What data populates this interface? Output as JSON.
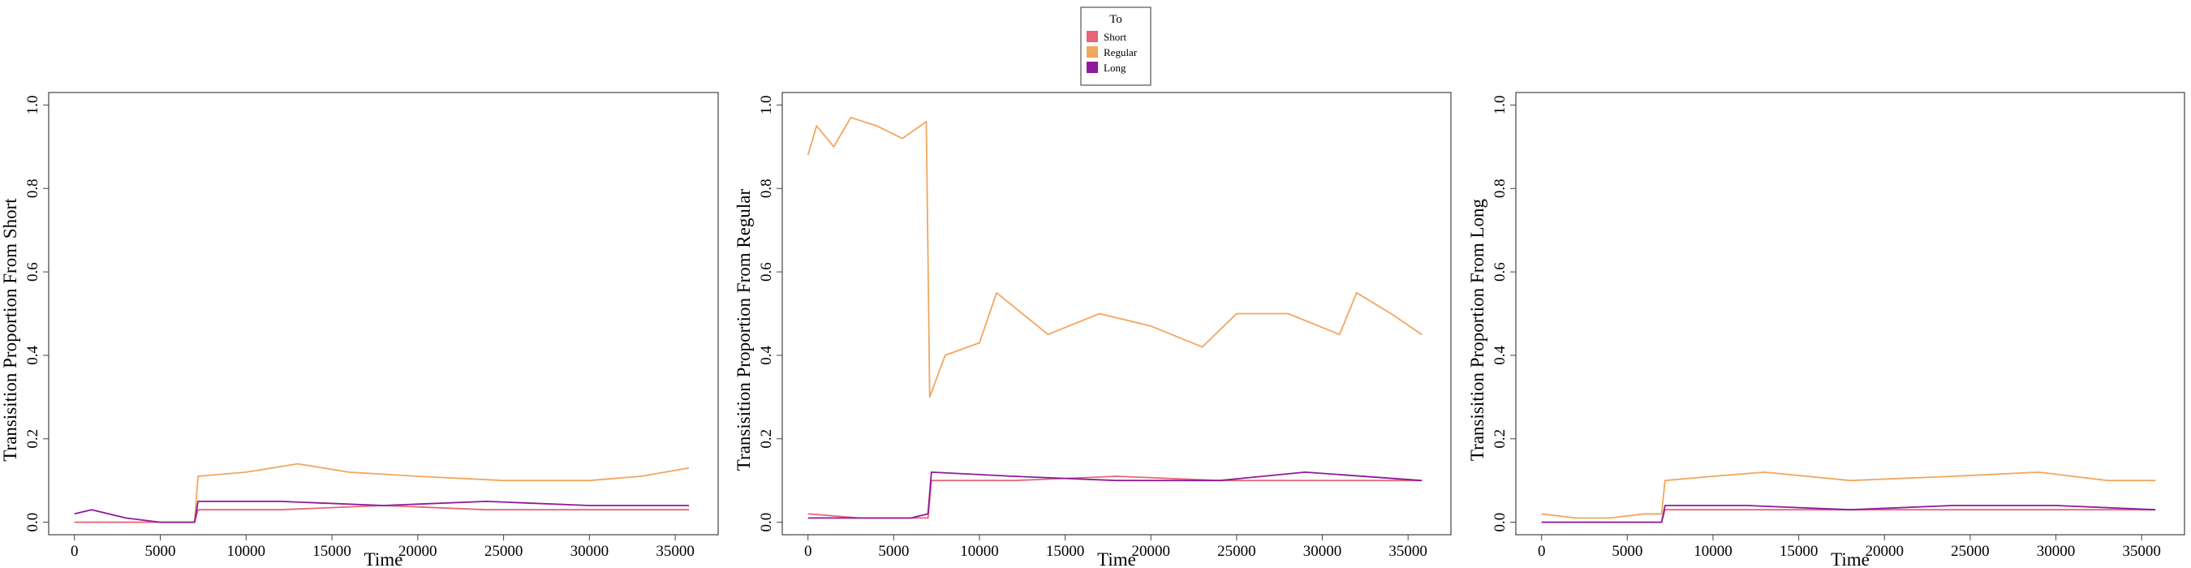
{
  "legend": {
    "title": "To",
    "entries": [
      {
        "label": "Short",
        "color": "#E8657A"
      },
      {
        "label": "Regular",
        "color": "#F2A65E"
      },
      {
        "label": "Long",
        "color": "#8E1A9A"
      }
    ]
  },
  "chart_data": [
    {
      "type": "line",
      "ylabel": "Transisition Proportion From Short",
      "xlabel": "Time",
      "xlim": [
        -1500,
        37500
      ],
      "ylim": [
        -0.03,
        1.03
      ],
      "xticks": [
        0,
        5000,
        10000,
        15000,
        20000,
        25000,
        30000,
        35000
      ],
      "yticks": [
        0.0,
        0.2,
        0.4,
        0.6,
        0.8,
        1.0
      ],
      "ytick_labels": [
        "0.0",
        "0.2",
        "0.4",
        "0.6",
        "0.8",
        "1.0"
      ],
      "series": [
        {
          "name": "Short",
          "x": [
            0,
            3000,
            7000,
            7200,
            12000,
            18000,
            24000,
            30000,
            35800
          ],
          "y": [
            0.0,
            0.0,
            0.0,
            0.03,
            0.03,
            0.04,
            0.03,
            0.03,
            0.03
          ]
        },
        {
          "name": "Regular",
          "x": [
            0,
            3000,
            7000,
            7200,
            10000,
            13000,
            16000,
            20000,
            25000,
            30000,
            33000,
            35800
          ],
          "y": [
            0.0,
            0.0,
            0.0,
            0.11,
            0.12,
            0.14,
            0.12,
            0.11,
            0.1,
            0.1,
            0.11,
            0.13
          ]
        },
        {
          "name": "Long",
          "x": [
            0,
            1000,
            3000,
            5000,
            7000,
            7200,
            12000,
            18000,
            24000,
            30000,
            35800
          ],
          "y": [
            0.02,
            0.03,
            0.01,
            0.0,
            0.0,
            0.05,
            0.05,
            0.04,
            0.05,
            0.04,
            0.04
          ]
        }
      ]
    },
    {
      "type": "line",
      "ylabel": "Transisition Proportion From Regular",
      "xlabel": "Time",
      "xlim": [
        -1500,
        37500
      ],
      "ylim": [
        -0.03,
        1.03
      ],
      "xticks": [
        0,
        5000,
        10000,
        15000,
        20000,
        25000,
        30000,
        35000
      ],
      "yticks": [
        0.0,
        0.2,
        0.4,
        0.6,
        0.8,
        1.0
      ],
      "ytick_labels": [
        "0.0",
        "0.2",
        "0.4",
        "0.6",
        "0.8",
        "1.0"
      ],
      "series": [
        {
          "name": "Short",
          "x": [
            0,
            3000,
            7000,
            7200,
            12000,
            18000,
            24000,
            30000,
            35800
          ],
          "y": [
            0.02,
            0.01,
            0.01,
            0.1,
            0.1,
            0.11,
            0.1,
            0.1,
            0.1
          ]
        },
        {
          "name": "Regular",
          "x": [
            0,
            500,
            1500,
            2500,
            4000,
            5500,
            6900,
            7100,
            8000,
            10000,
            11000,
            14000,
            17000,
            20000,
            23000,
            25000,
            28000,
            31000,
            32000,
            34000,
            35800
          ],
          "y": [
            0.88,
            0.95,
            0.9,
            0.97,
            0.95,
            0.92,
            0.96,
            0.3,
            0.4,
            0.43,
            0.55,
            0.45,
            0.5,
            0.47,
            0.42,
            0.5,
            0.5,
            0.45,
            0.55,
            0.5,
            0.45
          ]
        },
        {
          "name": "Long",
          "x": [
            0,
            3000,
            6000,
            7000,
            7200,
            12000,
            18000,
            24000,
            29000,
            35800
          ],
          "y": [
            0.01,
            0.01,
            0.01,
            0.02,
            0.12,
            0.11,
            0.1,
            0.1,
            0.12,
            0.1
          ]
        }
      ]
    },
    {
      "type": "line",
      "ylabel": "Transisition Proportion From Long",
      "xlabel": "Time",
      "xlim": [
        -1500,
        37500
      ],
      "ylim": [
        -0.03,
        1.03
      ],
      "xticks": [
        0,
        5000,
        10000,
        15000,
        20000,
        25000,
        30000,
        35000
      ],
      "yticks": [
        0.0,
        0.2,
        0.4,
        0.6,
        0.8,
        1.0
      ],
      "ytick_labels": [
        "0.0",
        "0.2",
        "0.4",
        "0.6",
        "0.8",
        "1.0"
      ],
      "series": [
        {
          "name": "Short",
          "x": [
            0,
            3000,
            7000,
            7200,
            12000,
            18000,
            24000,
            30000,
            35800
          ],
          "y": [
            0.0,
            0.0,
            0.0,
            0.03,
            0.03,
            0.03,
            0.03,
            0.03,
            0.03
          ]
        },
        {
          "name": "Regular",
          "x": [
            0,
            2000,
            4000,
            6000,
            7000,
            7200,
            10000,
            13000,
            18000,
            24000,
            29000,
            33000,
            35800
          ],
          "y": [
            0.02,
            0.01,
            0.01,
            0.02,
            0.02,
            0.1,
            0.11,
            0.12,
            0.1,
            0.11,
            0.12,
            0.1,
            0.1
          ]
        },
        {
          "name": "Long",
          "x": [
            0,
            3000,
            7000,
            7200,
            12000,
            18000,
            24000,
            30000,
            35800
          ],
          "y": [
            0.0,
            0.0,
            0.0,
            0.04,
            0.04,
            0.03,
            0.04,
            0.04,
            0.03
          ]
        }
      ]
    }
  ]
}
